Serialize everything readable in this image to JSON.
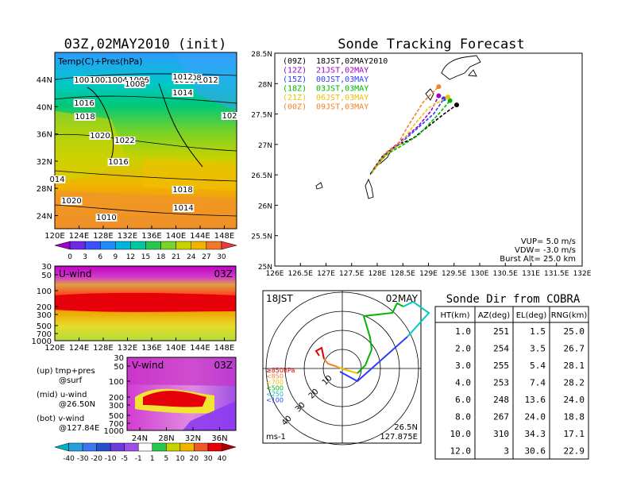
{
  "map_panel": {
    "title": "03Z,02MAY2010 (init)",
    "field_label": "Temp(C)+Pres(hPa)",
    "lat_labels": [
      "44N",
      "40N",
      "36N",
      "32N",
      "28N",
      "24N"
    ],
    "lon_labels": [
      "120E",
      "124E",
      "128E",
      "132E",
      "136E",
      "140E",
      "144E",
      "148E"
    ],
    "pressure_labels": [
      "1000",
      "1002",
      "1004",
      "1006",
      "1008",
      "1010",
      "1012",
      "1014",
      "1016",
      "1018",
      "1020",
      "1022",
      "1016",
      "1018",
      "1020",
      "1010",
      "1014",
      "1008",
      "1012",
      "102",
      "014"
    ],
    "colorbar_ticks": [
      "0",
      "3",
      "6",
      "9",
      "12",
      "15",
      "18",
      "21",
      "24",
      "27",
      "30"
    ]
  },
  "uwind_panel": {
    "label": "U-wind",
    "time": "03Z",
    "pressure_levels": [
      "30",
      "50",
      "100",
      "200",
      "300",
      "500",
      "700",
      "1000"
    ],
    "lon_labels": [
      "120E",
      "124E",
      "128E",
      "132E",
      "136E",
      "140E",
      "144E",
      "148E"
    ]
  },
  "vwind_panel": {
    "label": "V-wind",
    "time": "03Z",
    "pressure_levels": [
      "30",
      "50",
      "100",
      "200",
      "300",
      "500",
      "700",
      "1000"
    ],
    "lat_labels": [
      "24N",
      "28N",
      "32N",
      "36N"
    ],
    "colorbar_ticks": [
      "-40",
      "-30",
      "-20",
      "-10",
      "-5",
      "-1",
      "1",
      "5",
      "10",
      "20",
      "30",
      "40"
    ]
  },
  "panel_legend": {
    "line1": "(up) tmp+pres",
    "line2": "@surf",
    "line3": "(mid) u-wind",
    "line4": "@26.50N",
    "line5": "(bot) v-wind",
    "line6": "@127.84E"
  },
  "tracking": {
    "title": "Sonde Tracking Forecast",
    "lat_labels": [
      "28.5N",
      "28N",
      "27.5N",
      "27N",
      "26.5N",
      "26N",
      "25.5N",
      "25N"
    ],
    "lon_labels": [
      "126E",
      "126.5E",
      "127E",
      "127.5E",
      "128E",
      "128.5E",
      "129E",
      "129.5E",
      "130E",
      "130.5E",
      "131E",
      "131.5E",
      "132E"
    ],
    "legend": [
      {
        "launch": "(09Z)",
        "time": "18JST,02MAY2010",
        "color": "#000000"
      },
      {
        "launch": "(12Z)",
        "time": "21JST,02MAY",
        "color": "#a000c8"
      },
      {
        "launch": "(15Z)",
        "time": "00JST,03MAY",
        "color": "#2d3cff"
      },
      {
        "launch": "(18Z)",
        "time": "03JST,03MAY",
        "color": "#00b400"
      },
      {
        "launch": "(21Z)",
        "time": "06JST,03MAY",
        "color": "#f0c000"
      },
      {
        "launch": "(00Z)",
        "time": "09JST,03MAY",
        "color": "#f08228"
      }
    ],
    "vup": "VUP= 5.0 m/s",
    "vdw": "VDW= -3.0 m/s",
    "burst": "Burst Alt= 25.0 km"
  },
  "polar": {
    "time": "18JST",
    "date": "02MAY",
    "ring_labels": [
      "10",
      "20",
      "30",
      "40"
    ],
    "level_legend": [
      "≥850hPa",
      "<850",
      "<700",
      "<500",
      "<250",
      "<100"
    ],
    "level_colors": [
      "#e00000",
      "#f08228",
      "#f0c000",
      "#00b400",
      "#00c8c8",
      "#2d3cff"
    ],
    "units": "ms-1",
    "lat": "26.5N",
    "lon": "127.875E"
  },
  "sonde_table": {
    "title": "Sonde Dir from COBRA",
    "headers": [
      "HT(km)",
      "AZ(deg)",
      "EL(deg)",
      "RNG(km)"
    ],
    "rows": [
      [
        "1.0",
        "251",
        "1.5",
        "25.0"
      ],
      [
        "2.0",
        "254",
        "3.5",
        "26.7"
      ],
      [
        "3.0",
        "255",
        "5.4",
        "28.1"
      ],
      [
        "4.0",
        "253",
        "7.4",
        "28.2"
      ],
      [
        "6.0",
        "248",
        "13.6",
        "24.0"
      ],
      [
        "8.0",
        "267",
        "24.0",
        "18.8"
      ],
      [
        "10.0",
        "310",
        "34.3",
        "17.1"
      ],
      [
        "12.0",
        "3",
        "30.6",
        "22.9"
      ]
    ]
  },
  "chart_data": [
    {
      "type": "line",
      "title": "Sonde Tracking Forecast",
      "xlim": [
        126,
        132
      ],
      "ylim": [
        25,
        28.5
      ],
      "series": [
        {
          "name": "(09Z) 18JST,02MAY2010",
          "points": [
            [
              127.87,
              26.52
            ],
            [
              128.1,
              26.8
            ],
            [
              128.35,
              26.97
            ],
            [
              128.7,
              27.1
            ],
            [
              129.0,
              27.3
            ],
            [
              129.3,
              27.5
            ],
            [
              129.55,
              27.65
            ]
          ]
        },
        {
          "name": "(12Z) 21JST,02MAY",
          "points": [
            [
              127.9,
              26.55
            ],
            [
              128.15,
              26.85
            ],
            [
              128.38,
              27.0
            ],
            [
              128.8,
              27.3
            ],
            [
              129.05,
              27.55
            ],
            [
              129.2,
              27.8
            ]
          ]
        },
        {
          "name": "(15Z) 00JST,03MAY",
          "points": [
            [
              127.88,
              26.53
            ],
            [
              128.15,
              26.83
            ],
            [
              128.4,
              26.98
            ],
            [
              128.7,
              27.2
            ],
            [
              129.1,
              27.5
            ],
            [
              129.3,
              27.75
            ]
          ]
        },
        {
          "name": "(18Z) 03JST,03MAY",
          "points": [
            [
              127.88,
              26.52
            ],
            [
              128.15,
              26.82
            ],
            [
              128.42,
              26.95
            ],
            [
              128.8,
              27.15
            ],
            [
              129.2,
              27.5
            ],
            [
              129.42,
              27.72
            ]
          ]
        },
        {
          "name": "(21Z) 06JST,03MAY",
          "points": [
            [
              127.9,
              26.55
            ],
            [
              128.2,
              26.85
            ],
            [
              128.45,
              27.0
            ],
            [
              128.7,
              27.3
            ],
            [
              129.0,
              27.6
            ],
            [
              129.38,
              27.78
            ]
          ]
        },
        {
          "name": "(00Z) 09JST,03MAY",
          "points": [
            [
              127.9,
              26.55
            ],
            [
              128.15,
              26.85
            ],
            [
              128.4,
              27.0
            ],
            [
              128.6,
              27.3
            ],
            [
              128.9,
              27.7
            ],
            [
              129.2,
              27.95
            ]
          ]
        }
      ]
    },
    {
      "type": "table",
      "title": "Sonde Dir from COBRA",
      "columns": [
        "HT(km)",
        "AZ(deg)",
        "EL(deg)",
        "RNG(km)"
      ],
      "rows": [
        [
          1.0,
          251,
          1.5,
          25.0
        ],
        [
          2.0,
          254,
          3.5,
          26.7
        ],
        [
          3.0,
          255,
          5.4,
          28.1
        ],
        [
          4.0,
          253,
          7.4,
          28.2
        ],
        [
          6.0,
          248,
          13.6,
          24.0
        ],
        [
          8.0,
          267,
          24.0,
          18.8
        ],
        [
          10.0,
          310,
          34.3,
          17.1
        ],
        [
          12.0,
          3,
          30.6,
          22.9
        ]
      ]
    },
    {
      "type": "heatmap",
      "title": "03Z,02MAY2010 (init)",
      "xlim": [
        120,
        149
      ],
      "ylim": [
        22,
        48
      ],
      "colorbar": [
        0,
        3,
        6,
        9,
        12,
        15,
        18,
        21,
        24,
        27,
        30
      ]
    },
    {
      "type": "heatmap",
      "title": "U-wind 03Z",
      "xlim": [
        120,
        149
      ],
      "ylevels": [
        30,
        50,
        100,
        200,
        300,
        500,
        700,
        1000
      ]
    },
    {
      "type": "heatmap",
      "title": "V-wind 03Z",
      "xlim": [
        22,
        38
      ],
      "ylevels": [
        30,
        50,
        100,
        200,
        300,
        500,
        700,
        1000
      ],
      "colorbar": [
        -40,
        -30,
        -20,
        -10,
        -5,
        -1,
        1,
        5,
        10,
        20,
        30,
        40
      ]
    }
  ]
}
